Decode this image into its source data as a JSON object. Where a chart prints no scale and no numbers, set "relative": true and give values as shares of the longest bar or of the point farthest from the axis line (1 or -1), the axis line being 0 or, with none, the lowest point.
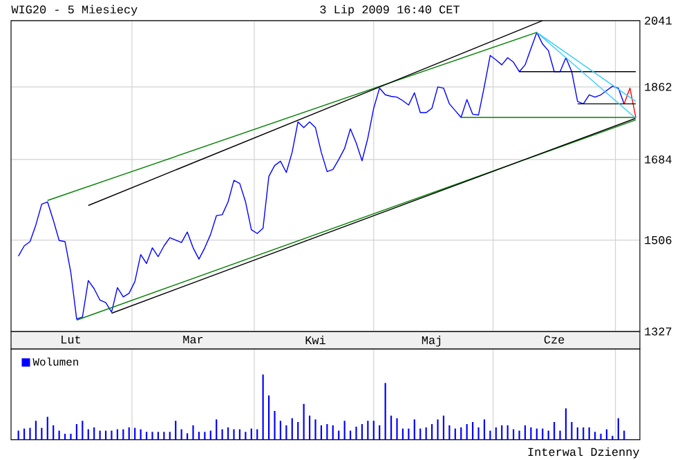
{
  "chart_data": [
    {
      "type": "line",
      "title": "WIG20 - 5 Miesiecy",
      "subtitle": "3 Lip 2009 16:40 CET",
      "categories": [
        null,
        null,
        null,
        null,
        null,
        null,
        null,
        null,
        null,
        "Lut",
        null,
        null,
        null,
        null,
        null,
        null,
        null,
        null,
        null,
        null,
        null,
        null,
        null,
        null,
        null,
        null,
        null,
        null,
        null,
        null,
        "Mar",
        null,
        null,
        null,
        null,
        null,
        null,
        null,
        null,
        null,
        null,
        null,
        null,
        null,
        null,
        null,
        null,
        null,
        null,
        null,
        null,
        "Kwi",
        null,
        null,
        null,
        null,
        null,
        null,
        null,
        null,
        null,
        null,
        null,
        null,
        null,
        null,
        null,
        null,
        null,
        null,
        null,
        "Maj",
        null,
        null,
        null,
        null,
        null,
        null,
        null,
        null,
        null,
        null,
        null,
        null,
        null,
        null,
        null,
        null,
        null,
        null,
        null,
        null,
        "Cze",
        null,
        null,
        null,
        null,
        null,
        null,
        null,
        null,
        null,
        null,
        null,
        null,
        null,
        null
      ],
      "series": [
        {
          "color": "#0000ff",
          "values": [
            1473,
            1494,
            1503,
            1538,
            1583,
            1588,
            1548,
            1505,
            1503,
            1440,
            1350,
            1354,
            1424,
            1408,
            1386,
            1381,
            1363,
            1410,
            1392,
            1399,
            1422,
            1476,
            1458,
            1490,
            1472,
            1494,
            1511,
            1506,
            1501,
            1523,
            1490,
            1467,
            1490,
            1518,
            1558,
            1560,
            1588,
            1636,
            1629,
            1588,
            1528,
            1520,
            1531,
            1645,
            1670,
            1680,
            1654,
            1701,
            1774,
            1760,
            1774,
            1760,
            1701,
            1656,
            1661,
            1684,
            1710,
            1757,
            1723,
            1681,
            1735,
            1808,
            1859,
            1842,
            1838,
            1836,
            1827,
            1816,
            1847,
            1797,
            1797,
            1808,
            1862,
            1859,
            1819,
            1802,
            1785,
            1830,
            1793,
            1791,
            1864,
            1945,
            1933,
            1920,
            1939,
            1927,
            1902,
            1920,
            1964,
            2008,
            1976,
            1958,
            1902,
            1902,
            1939,
            1902,
            1825,
            1819,
            1842,
            1836,
            1842,
            1853,
            1864,
            1859,
            1819,
            null,
            null
          ]
        },
        {
          "type": "line",
          "color": "#ff0000",
          "values": [
            null,
            null,
            null,
            null,
            null,
            null,
            null,
            null,
            null,
            null,
            null,
            null,
            null,
            null,
            null,
            null,
            null,
            null,
            null,
            null,
            null,
            null,
            null,
            null,
            null,
            null,
            null,
            null,
            null,
            null,
            null,
            null,
            null,
            null,
            null,
            null,
            null,
            null,
            null,
            null,
            null,
            null,
            null,
            null,
            null,
            null,
            null,
            null,
            null,
            null,
            null,
            null,
            null,
            null,
            null,
            null,
            null,
            null,
            null,
            null,
            null,
            null,
            null,
            null,
            null,
            null,
            null,
            null,
            null,
            null,
            null,
            null,
            null,
            null,
            null,
            null,
            null,
            null,
            null,
            null,
            null,
            null,
            null,
            null,
            null,
            null,
            null,
            null,
            null,
            null,
            null,
            null,
            null,
            null,
            null,
            null,
            null,
            null,
            null,
            null,
            null,
            null,
            null,
            null,
            1819,
            1859,
            1785
          ]
        },
        {
          "type": "line",
          "color": "#008000",
          "values": [
            null,
            null,
            null,
            null,
            null,
            1591,
            null,
            null,
            null,
            null,
            null,
            null,
            null,
            null,
            null,
            null,
            null,
            null,
            null,
            null,
            null,
            null,
            null,
            null,
            null,
            null,
            null,
            null,
            null,
            null,
            null,
            null,
            null,
            null,
            null,
            null,
            null,
            null,
            null,
            null,
            null,
            null,
            null,
            null,
            null,
            null,
            null,
            null,
            null,
            null,
            null,
            null,
            null,
            null,
            null,
            null,
            null,
            null,
            null,
            null,
            null,
            null,
            null,
            null,
            null,
            null,
            null,
            null,
            null,
            null,
            null,
            null,
            null,
            null,
            null,
            null,
            null,
            null,
            null,
            null,
            null,
            null,
            null,
            null,
            null,
            null,
            null,
            null,
            null,
            2008,
            null,
            null,
            null,
            null,
            null,
            null,
            null,
            null,
            null,
            null,
            null,
            null,
            null,
            null,
            null,
            null,
            null
          ]
        },
        {
          "type": "line",
          "color": "#000000",
          "values": [
            null,
            null,
            null,
            null,
            null,
            null,
            null,
            null,
            null,
            null,
            null,
            null,
            1580,
            null,
            null,
            null,
            null,
            null,
            null,
            null,
            null,
            null,
            null,
            null,
            null,
            null,
            null,
            null,
            null,
            null,
            null,
            null,
            null,
            null,
            null,
            null,
            null,
            null,
            null,
            null,
            null,
            null,
            null,
            null,
            null,
            null,
            null,
            null,
            null,
            null,
            null,
            null,
            null,
            null,
            null,
            null,
            null,
            null,
            null,
            null,
            null,
            null,
            null,
            null,
            null,
            null,
            null,
            null,
            null,
            null,
            null,
            null,
            null,
            null,
            null,
            null,
            null,
            null,
            null,
            null,
            null,
            null,
            null,
            null,
            null,
            null,
            null,
            null,
            null,
            null,
            2041,
            null,
            null,
            null,
            null,
            null,
            null,
            null,
            null,
            null,
            null,
            null,
            null,
            null,
            null,
            null,
            null
          ]
        },
        {
          "type": "line",
          "color": "#008000",
          "values": [
            null,
            null,
            null,
            null,
            null,
            null,
            null,
            null,
            null,
            null,
            1348,
            null,
            null,
            null,
            null,
            null,
            null,
            null,
            null,
            null,
            null,
            null,
            null,
            null,
            null,
            null,
            null,
            null,
            null,
            null,
            null,
            null,
            null,
            null,
            null,
            null,
            null,
            null,
            null,
            null,
            null,
            null,
            null,
            null,
            null,
            null,
            null,
            null,
            null,
            null,
            null,
            null,
            null,
            null,
            null,
            null,
            null,
            null,
            null,
            null,
            null,
            null,
            null,
            null,
            null,
            null,
            null,
            null,
            null,
            null,
            null,
            null,
            null,
            null,
            null,
            null,
            null,
            null,
            null,
            null,
            null,
            null,
            null,
            null,
            null,
            null,
            null,
            null,
            null,
            null,
            null,
            null,
            null,
            null,
            null,
            null,
            null,
            null,
            null,
            null,
            null,
            null,
            null,
            null,
            null,
            null,
            1779
          ]
        },
        {
          "type": "line",
          "color": "#000000",
          "values": [
            null,
            null,
            null,
            null,
            null,
            null,
            null,
            null,
            null,
            null,
            null,
            null,
            null,
            null,
            null,
            null,
            1361,
            null,
            null,
            null,
            null,
            null,
            null,
            null,
            null,
            null,
            null,
            null,
            null,
            null,
            null,
            null,
            null,
            null,
            null,
            null,
            null,
            null,
            null,
            null,
            null,
            null,
            null,
            null,
            null,
            null,
            null,
            null,
            null,
            null,
            null,
            null,
            null,
            null,
            null,
            null,
            null,
            null,
            null,
            null,
            null,
            null,
            null,
            null,
            null,
            null,
            null,
            null,
            null,
            null,
            null,
            null,
            null,
            null,
            null,
            null,
            null,
            null,
            null,
            null,
            null,
            null,
            null,
            null,
            null,
            null,
            null,
            null,
            null,
            null,
            null,
            null,
            null,
            null,
            null,
            null,
            null,
            null,
            null,
            null,
            null,
            null,
            null,
            null,
            null,
            null,
            1783
          ]
        },
        {
          "type": "line",
          "color": "#008000",
          "values": [
            null,
            null,
            null,
            null,
            null,
            null,
            null,
            null,
            null,
            null,
            null,
            null,
            null,
            null,
            null,
            null,
            null,
            null,
            null,
            null,
            null,
            null,
            null,
            null,
            null,
            null,
            null,
            null,
            null,
            null,
            null,
            null,
            null,
            null,
            null,
            null,
            null,
            null,
            null,
            null,
            null,
            null,
            null,
            null,
            null,
            null,
            null,
            null,
            null,
            null,
            null,
            null,
            null,
            null,
            null,
            null,
            null,
            null,
            null,
            null,
            null,
            null,
            null,
            null,
            null,
            null,
            null,
            null,
            null,
            null,
            null,
            null,
            null,
            null,
            null,
            null,
            1785,
            null,
            null,
            null,
            null,
            null,
            null,
            null,
            null,
            null,
            null,
            null,
            null,
            null,
            null,
            null,
            null,
            null,
            null,
            null,
            null,
            null,
            null,
            null,
            null,
            null,
            null,
            null,
            null,
            null,
            1785
          ]
        },
        {
          "type": "line",
          "color": "#000000",
          "values": [
            null,
            null,
            null,
            null,
            null,
            null,
            null,
            null,
            null,
            null,
            null,
            null,
            null,
            null,
            null,
            null,
            null,
            null,
            null,
            null,
            null,
            null,
            null,
            null,
            null,
            null,
            null,
            null,
            null,
            null,
            null,
            null,
            null,
            null,
            null,
            null,
            null,
            null,
            null,
            null,
            null,
            null,
            null,
            null,
            null,
            null,
            null,
            null,
            null,
            null,
            null,
            null,
            null,
            null,
            null,
            null,
            null,
            null,
            null,
            null,
            null,
            null,
            null,
            null,
            null,
            null,
            null,
            null,
            null,
            null,
            null,
            null,
            null,
            null,
            null,
            null,
            null,
            null,
            null,
            null,
            null,
            null,
            null,
            null,
            null,
            null,
            1902,
            null,
            null,
            null,
            null,
            null,
            null,
            null,
            null,
            null,
            null,
            null,
            null,
            null,
            null,
            null,
            null,
            null,
            null,
            null,
            1902
          ]
        },
        {
          "type": "line",
          "color": "#000000",
          "values": [
            null,
            null,
            null,
            null,
            null,
            null,
            null,
            null,
            null,
            null,
            null,
            null,
            null,
            null,
            null,
            null,
            null,
            null,
            null,
            null,
            null,
            null,
            null,
            null,
            null,
            null,
            null,
            null,
            null,
            null,
            null,
            null,
            null,
            null,
            null,
            null,
            null,
            null,
            null,
            null,
            null,
            null,
            null,
            null,
            null,
            null,
            null,
            null,
            null,
            null,
            null,
            null,
            null,
            null,
            null,
            null,
            null,
            null,
            null,
            null,
            null,
            null,
            null,
            null,
            null,
            null,
            null,
            null,
            null,
            null,
            null,
            null,
            null,
            null,
            null,
            null,
            null,
            null,
            null,
            null,
            null,
            null,
            null,
            null,
            null,
            null,
            null,
            null,
            null,
            null,
            null,
            null,
            null,
            null,
            null,
            null,
            1819,
            null,
            null,
            null,
            null,
            null,
            null,
            null,
            null,
            null,
            1819
          ]
        },
        {
          "type": "line",
          "color": "#33ccff",
          "values": [
            null,
            null,
            null,
            null,
            null,
            null,
            null,
            null,
            null,
            null,
            null,
            null,
            null,
            null,
            null,
            null,
            null,
            null,
            null,
            null,
            null,
            null,
            null,
            null,
            null,
            null,
            null,
            null,
            null,
            null,
            null,
            null,
            null,
            null,
            null,
            null,
            null,
            null,
            null,
            null,
            null,
            null,
            null,
            null,
            null,
            null,
            null,
            null,
            null,
            null,
            null,
            null,
            null,
            null,
            null,
            null,
            null,
            null,
            null,
            null,
            null,
            null,
            null,
            null,
            null,
            null,
            null,
            null,
            null,
            null,
            null,
            null,
            null,
            null,
            null,
            null,
            null,
            null,
            null,
            null,
            null,
            null,
            null,
            null,
            null,
            null,
            null,
            null,
            null,
            2008,
            null,
            null,
            null,
            null,
            null,
            null,
            null,
            null,
            null,
            null,
            null,
            null,
            null,
            null,
            null,
            null,
            1783
          ]
        },
        {
          "type": "line",
          "color": "#33ccff",
          "values": [
            null,
            null,
            null,
            null,
            null,
            null,
            null,
            null,
            null,
            null,
            null,
            null,
            null,
            null,
            null,
            null,
            null,
            null,
            null,
            null,
            null,
            null,
            null,
            null,
            null,
            null,
            null,
            null,
            null,
            null,
            null,
            null,
            null,
            null,
            null,
            null,
            null,
            null,
            null,
            null,
            null,
            null,
            null,
            null,
            null,
            null,
            null,
            null,
            null,
            null,
            null,
            null,
            null,
            null,
            null,
            null,
            null,
            null,
            null,
            null,
            null,
            null,
            null,
            null,
            null,
            null,
            null,
            null,
            null,
            null,
            null,
            null,
            null,
            null,
            null,
            null,
            null,
            null,
            null,
            null,
            null,
            null,
            null,
            null,
            null,
            null,
            null,
            null,
            null,
            2008,
            null,
            null,
            null,
            null,
            null,
            null,
            null,
            null,
            null,
            null,
            null,
            null,
            null,
            null,
            null,
            null,
            1825
          ]
        }
      ],
      "ylim": [
        1327,
        2041
      ],
      "log": "y",
      "yticks": [
        1327,
        1506,
        1684,
        1862,
        2041
      ],
      "grid": true
    },
    {
      "type": "bar",
      "relative": true,
      "categories": [
        null,
        null,
        null,
        null,
        null,
        null,
        null,
        null,
        null,
        null,
        null,
        null,
        null,
        null,
        null,
        null,
        null,
        null,
        null,
        null,
        null,
        null,
        null,
        null,
        null,
        null,
        null,
        null,
        null,
        null,
        null,
        null,
        null,
        null,
        null,
        null,
        null,
        null,
        null,
        null,
        null,
        null,
        null,
        null,
        null,
        null,
        null,
        null,
        null,
        null,
        null,
        null,
        null,
        null,
        null,
        null,
        null,
        null,
        null,
        null,
        null,
        null,
        null,
        null,
        null,
        null,
        null,
        null,
        null,
        null,
        null,
        null,
        null,
        null,
        null,
        null,
        null,
        null,
        null,
        null,
        null,
        null,
        null,
        null,
        null,
        null,
        null,
        null,
        null,
        null,
        null,
        null,
        null,
        null,
        null,
        null,
        null,
        null,
        null,
        null,
        null,
        null,
        null,
        null,
        null,
        null,
        null
      ],
      "series": [
        {
          "name": "Wolumen",
          "color": "#0000ff",
          "values": [
            0.14,
            0.17,
            0.18,
            0.29,
            0.18,
            0.35,
            0.22,
            0.14,
            0.09,
            0.09,
            0.24,
            0.29,
            0.16,
            0.19,
            0.14,
            0.14,
            0.14,
            0.16,
            0.16,
            0.19,
            0.18,
            0.16,
            0.12,
            0.12,
            0.12,
            0.12,
            0.12,
            0.29,
            0.16,
            0.1,
            0.22,
            0.12,
            0.12,
            0.14,
            0.31,
            0.16,
            0.19,
            0.16,
            0.16,
            0.12,
            0.17,
            0.16,
            1,
            0.68,
            0.44,
            0.29,
            0.22,
            0.33,
            0.27,
            0.55,
            0.37,
            0.31,
            0.22,
            0.24,
            0.22,
            0.14,
            0.29,
            0.14,
            0.2,
            0.24,
            0.29,
            0.29,
            0.22,
            0.87,
            0.37,
            0.33,
            0.17,
            0.17,
            0.31,
            0.17,
            0.19,
            0.24,
            0.31,
            0.37,
            0.22,
            0.17,
            0.19,
            0.24,
            0.27,
            0.19,
            0.31,
            0.14,
            0.19,
            0.22,
            0.22,
            0.16,
            0.14,
            0.22,
            0.19,
            0.17,
            0.17,
            0.14,
            0.27,
            0.14,
            0.48,
            0.27,
            0.19,
            0.19,
            0.19,
            0.12,
            0.09,
            0.16,
            0.06,
            0.33,
            0.14,
            null,
            null
          ]
        }
      ],
      "grid": "x",
      "legend": "top left",
      "annotations": [
        "Interwal Dzienny"
      ]
    }
  ]
}
